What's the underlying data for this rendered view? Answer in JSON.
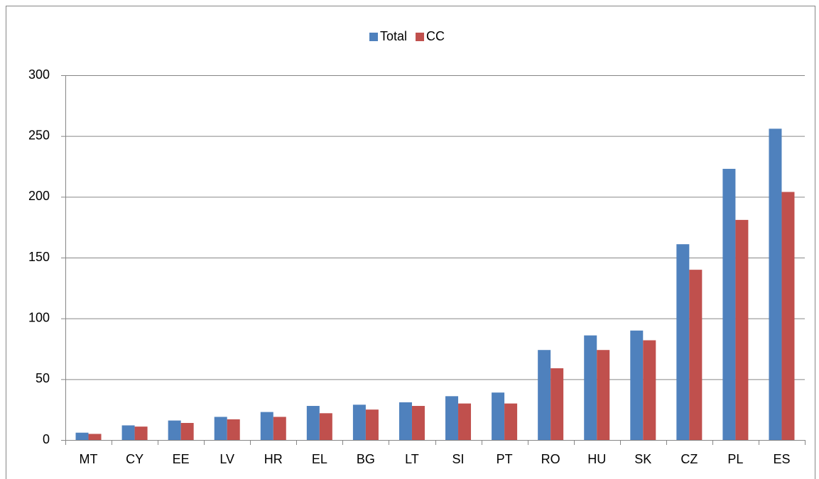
{
  "chart_data": {
    "type": "bar",
    "categories": [
      "MT",
      "CY",
      "EE",
      "LV",
      "HR",
      "EL",
      "BG",
      "LT",
      "SI",
      "PT",
      "RO",
      "HU",
      "SK",
      "CZ",
      "PL",
      "ES"
    ],
    "series": [
      {
        "name": "Total",
        "color": "#4f81bd",
        "values": [
          6,
          12,
          16,
          19,
          23,
          28,
          29,
          31,
          36,
          39,
          74,
          86,
          90,
          161,
          223,
          256
        ]
      },
      {
        "name": "CC",
        "color": "#c0504d",
        "values": [
          5,
          11,
          14,
          17,
          19,
          22,
          25,
          28,
          30,
          30,
          59,
          74,
          82,
          140,
          181,
          204
        ]
      }
    ],
    "ylim": [
      0,
      300
    ],
    "yticks": [
      0,
      50,
      100,
      150,
      200,
      250,
      300
    ],
    "grid": true,
    "legend": "top"
  }
}
